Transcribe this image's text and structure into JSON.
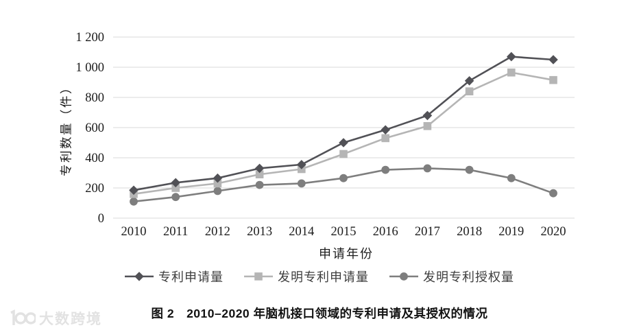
{
  "figure": {
    "caption": "图 2　2010–2020 年脑机接口领域的专利申请及其授权的情况",
    "watermark": "大数跨境"
  },
  "chart_data": {
    "type": "line",
    "title": "",
    "xlabel": "申请年份",
    "ylabel": "专利数量（件）",
    "categories": [
      "2010",
      "2011",
      "2012",
      "2013",
      "2014",
      "2015",
      "2016",
      "2017",
      "2018",
      "2019",
      "2020"
    ],
    "series": [
      {
        "name": "专利申请量",
        "marker": "diamond",
        "color": "#515156",
        "values": [
          185,
          235,
          265,
          330,
          355,
          500,
          585,
          680,
          910,
          1070,
          1050
        ]
      },
      {
        "name": "发明专利申请量",
        "marker": "square",
        "color": "#b5b5b5",
        "values": [
          160,
          200,
          230,
          290,
          325,
          425,
          530,
          610,
          840,
          965,
          915
        ]
      },
      {
        "name": "发明专利授权量",
        "marker": "circle",
        "color": "#7e7e7e",
        "values": [
          110,
          140,
          180,
          220,
          230,
          265,
          320,
          330,
          320,
          265,
          165
        ]
      }
    ],
    "ylim": [
      0,
      1200
    ],
    "yticks": {
      "values": [
        0,
        200,
        400,
        600,
        800,
        1000,
        1200
      ],
      "labels": [
        "0",
        "200",
        "400",
        "600",
        "800",
        "1 000",
        "1 200"
      ]
    },
    "grid": true,
    "gridline_color": "#d9d9d9",
    "tick_color": "#1c1c1c",
    "legend_position": "bottom"
  }
}
